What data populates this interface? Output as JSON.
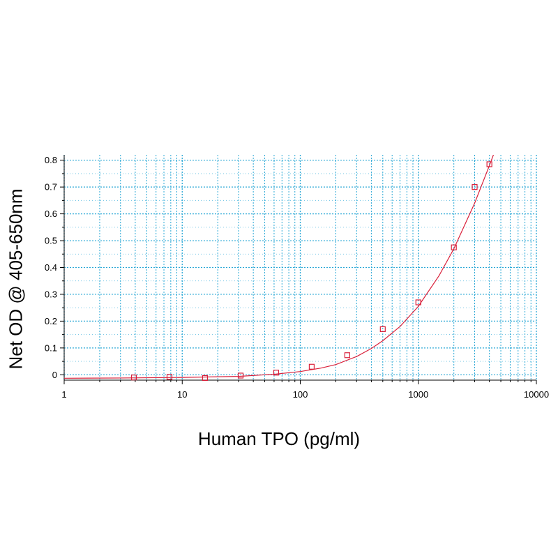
{
  "chart_data": {
    "type": "scatter",
    "title": "",
    "xlabel": "Human TPO (pg/ml)",
    "ylabel": "Net OD @ 405-650nm",
    "xscale": "log",
    "xlim": [
      1,
      10000
    ],
    "ylim": [
      -0.02,
      0.82
    ],
    "x_ticks": [
      1,
      10,
      100,
      1000,
      10000
    ],
    "x_tick_labels": [
      "1",
      "10",
      "100",
      "1000",
      "10000"
    ],
    "y_ticks": [
      0,
      0.1,
      0.2,
      0.3,
      0.4,
      0.5,
      0.6,
      0.7,
      0.8
    ],
    "y_tick_labels": [
      "0",
      "0.1",
      "0.2",
      "0.3",
      "0.4",
      "0.5",
      "0.6",
      "0.7",
      "0.8"
    ],
    "grid": true,
    "legend": "none",
    "series": [
      {
        "marker": "square",
        "x": [
          3.9,
          7.8,
          15.6,
          31.25,
          62.5,
          125,
          250,
          500,
          1000,
          2000,
          3000,
          4000
        ],
        "y": [
          -0.01,
          -0.008,
          -0.012,
          -0.003,
          0.008,
          0.03,
          0.073,
          0.17,
          0.27,
          0.475,
          0.7,
          0.785
        ]
      }
    ],
    "fit_curve": {
      "x": [
        1,
        3,
        10,
        30,
        60,
        100,
        150,
        200,
        300,
        400,
        500,
        700,
        1000,
        1500,
        2000,
        3000,
        4000,
        4500
      ],
      "y": [
        -0.013,
        -0.012,
        -0.01,
        -0.006,
        0.002,
        0.012,
        0.025,
        0.038,
        0.068,
        0.098,
        0.127,
        0.18,
        0.255,
        0.37,
        0.47,
        0.64,
        0.78,
        0.84
      ]
    },
    "colors": {
      "grid": "#2ba8d6",
      "series": "#d9203a",
      "axis": "#000000"
    }
  }
}
